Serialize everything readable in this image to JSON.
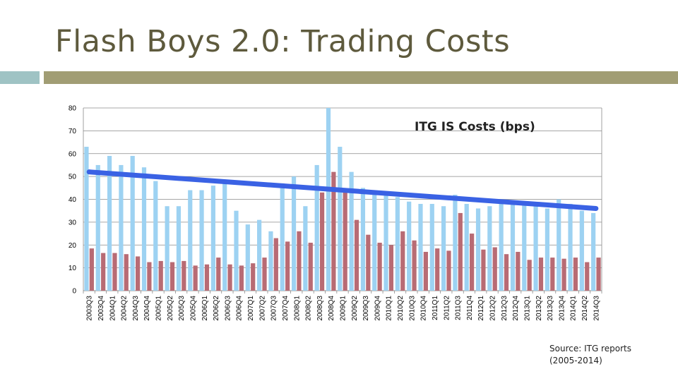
{
  "slide": {
    "title": "Flash Boys 2.0: Trading Costs",
    "source_line1": "Source: ITG reports",
    "source_line2": "(2005-2014)",
    "colors": {
      "title": "#5e5a3d",
      "accent_left": "#9fc3c4",
      "accent_right": "#a19d74"
    }
  },
  "chart_data": {
    "type": "bar",
    "annotation": "ITG IS Costs (bps)",
    "ylim": [
      0,
      80
    ],
    "yticks": [
      0,
      10,
      20,
      30,
      40,
      50,
      60,
      70,
      80
    ],
    "grid": true,
    "tick_labels": [
      "2003Q3",
      "2003Q4",
      "2004Q1",
      "2004Q2",
      "2004Q3",
      "2004Q4",
      "2005Q1",
      "2005Q2",
      "2005Q3",
      "2005Q4",
      "2006Q1",
      "2006Q2",
      "2006Q3",
      "2006Q4",
      "2007Q1",
      "2007Q2",
      "2007Q3",
      "2007Q4",
      "2008Q1",
      "2008Q2",
      "2008Q3",
      "2008Q4",
      "2009Q1",
      "2009Q2",
      "2009Q3",
      "2009Q4",
      "2010Q1",
      "2010Q2",
      "2010Q3",
      "2010Q4",
      "2011Q1",
      "2011Q2",
      "2011Q3",
      "2011Q4",
      "2012Q1",
      "2012Q2",
      "2012Q3",
      "2012Q4",
      "2013Q1",
      "2013Q2",
      "2013Q3",
      "2013Q4",
      "2014Q1",
      "2014Q2",
      "2014Q3"
    ],
    "categories": [
      "2003Q3",
      "2003Q4",
      "2004Q1",
      "2004Q2",
      "2004Q3",
      "2004Q4",
      "2005Q1",
      "2005Q2",
      "2005Q3",
      "2005Q4",
      "2006Q1",
      "2006Q2",
      "2006Q3",
      "2006Q4",
      "2007Q1",
      "2007Q2",
      "2007Q3",
      "2007Q4",
      "2008Q1",
      "2008Q2",
      "2008Q3",
      "2008Q4",
      "2009Q1",
      "2009Q2",
      "2009Q3",
      "2009Q4",
      "2010Q1",
      "2010Q2",
      "2010Q3",
      "2010Q4",
      "2011Q1",
      "2011Q2",
      "2011Q3",
      "2011Q4",
      "2012Q1",
      "2012Q2",
      "2012Q3",
      "2012Q4",
      "2013Q1",
      "2013Q2",
      "2013Q3",
      "2013Q4",
      "2014Q1",
      "2014Q2",
      "2014Q3"
    ],
    "series": [
      {
        "color": "#9dd2f2",
        "values": [
          63,
          55,
          59,
          55,
          59,
          54,
          48,
          37,
          37,
          44,
          44,
          46,
          48,
          35,
          29,
          31,
          26,
          47,
          50,
          37,
          55,
          80,
          63,
          52,
          45,
          42,
          42,
          41,
          39,
          38,
          38,
          37,
          42,
          38,
          36,
          37,
          39,
          38,
          38,
          38,
          36,
          40,
          38,
          35,
          34
        ]
      },
      {
        "color": "#b86b74",
        "values": [
          18.5,
          16.5,
          16.5,
          16,
          15,
          12.5,
          13,
          12.5,
          13,
          11,
          11.5,
          14.5,
          11.5,
          11,
          12,
          14.5,
          23,
          21.5,
          26,
          21,
          43,
          52,
          43,
          31,
          24.5,
          21,
          20,
          26,
          22,
          17,
          18.5,
          17.5,
          34,
          25,
          18,
          19,
          16,
          17,
          13.5,
          14.5,
          14.5,
          14,
          14.5,
          12.5,
          14.5
        ]
      }
    ],
    "trendline": {
      "start": 52,
      "end": 36,
      "color": "#3a62e4"
    }
  }
}
